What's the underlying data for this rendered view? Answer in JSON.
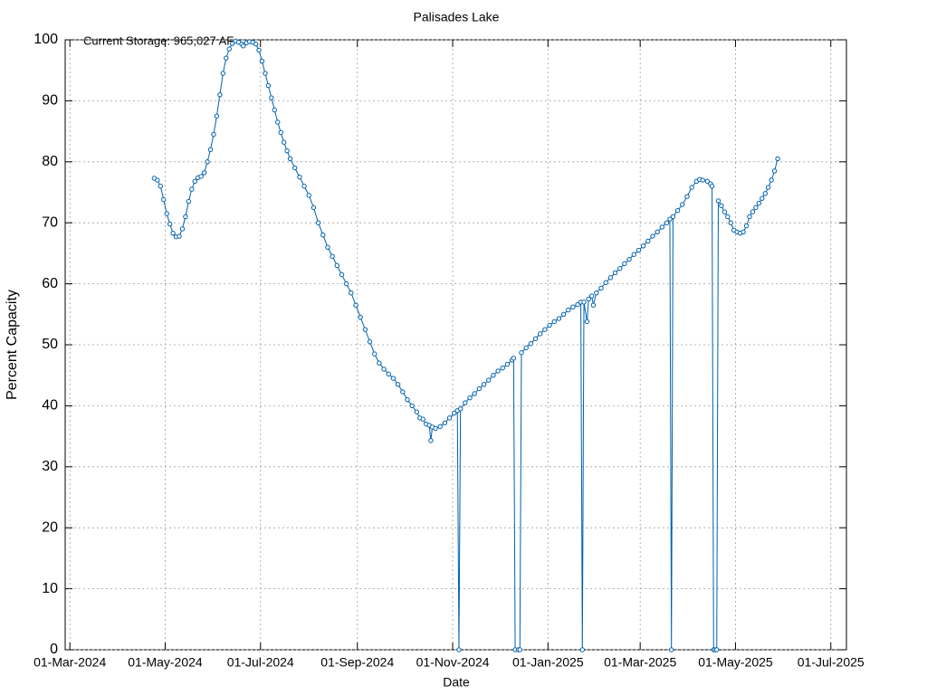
{
  "chart_data": {
    "type": "line",
    "title": "Palisades Lake",
    "x_label": "Date",
    "y_label": "Percent Capacity",
    "grid": true,
    "legend": "top-left",
    "xlim": [
      "2024-02-27",
      "2025-07-11"
    ],
    "xticks": [
      {
        "value": "2024-03-01",
        "label": "01-Mar-2024"
      },
      {
        "value": "2024-05-01",
        "label": "01-May-2024"
      },
      {
        "value": "2024-07-01",
        "label": "01-Jul-2024"
      },
      {
        "value": "2024-09-01",
        "label": "01-Sep-2024"
      },
      {
        "value": "2024-11-01",
        "label": "01-Nov-2024"
      },
      {
        "value": "2025-01-01",
        "label": "01-Jan-2025"
      },
      {
        "value": "2025-03-01",
        "label": "01-Mar-2025"
      },
      {
        "value": "2025-05-01",
        "label": "01-May-2025"
      },
      {
        "value": "2025-07-01",
        "label": "01-Jul-2025"
      }
    ],
    "ylim": [
      0,
      100
    ],
    "yticks": [
      0,
      10,
      20,
      30,
      40,
      50,
      60,
      70,
      80,
      90,
      100
    ],
    "x": [
      "2024-04-24",
      "2024-04-26",
      "2024-04-28",
      "2024-04-30",
      "2024-05-02",
      "2024-05-04",
      "2024-05-06",
      "2024-05-08",
      "2024-05-10",
      "2024-05-12",
      "2024-05-14",
      "2024-05-16",
      "2024-05-18",
      "2024-05-20",
      "2024-05-22",
      "2024-05-24",
      "2024-05-26",
      "2024-05-28",
      "2024-05-30",
      "2024-06-01",
      "2024-06-03",
      "2024-06-05",
      "2024-06-07",
      "2024-06-09",
      "2024-06-11",
      "2024-06-13",
      "2024-06-15",
      "2024-06-17",
      "2024-06-19",
      "2024-06-20",
      "2024-06-22",
      "2024-06-24",
      "2024-06-26",
      "2024-06-28",
      "2024-06-30",
      "2024-07-02",
      "2024-07-04",
      "2024-07-06",
      "2024-07-08",
      "2024-07-10",
      "2024-07-12",
      "2024-07-14",
      "2024-07-16",
      "2024-07-18",
      "2024-07-20",
      "2024-07-23",
      "2024-07-26",
      "2024-07-29",
      "2024-08-01",
      "2024-08-04",
      "2024-08-07",
      "2024-08-10",
      "2024-08-13",
      "2024-08-16",
      "2024-08-19",
      "2024-08-22",
      "2024-08-25",
      "2024-08-28",
      "2024-08-31",
      "2024-09-03",
      "2024-09-06",
      "2024-09-09",
      "2024-09-12",
      "2024-09-15",
      "2024-09-18",
      "2024-09-21",
      "2024-09-24",
      "2024-09-27",
      "2024-09-30",
      "2024-10-03",
      "2024-10-06",
      "2024-10-09",
      "2024-10-11",
      "2024-10-13",
      "2024-10-15",
      "2024-10-17",
      "2024-10-18",
      "2024-10-19",
      "2024-10-21",
      "2024-10-24",
      "2024-10-27",
      "2024-10-30",
      "2024-11-02",
      "2024-11-04",
      "2024-11-05",
      "2024-11-06",
      "2024-11-09",
      "2024-11-12",
      "2024-11-15",
      "2024-11-18",
      "2024-11-21",
      "2024-11-24",
      "2024-11-27",
      "2024-11-30",
      "2024-12-03",
      "2024-12-06",
      "2024-12-09",
      "2024-12-10",
      "2024-12-11",
      "2024-12-13",
      "2024-12-14",
      "2024-12-15",
      "2024-12-18",
      "2024-12-21",
      "2024-12-24",
      "2024-12-27",
      "2024-12-30",
      "2025-01-02",
      "2025-01-05",
      "2025-01-08",
      "2025-01-11",
      "2025-01-14",
      "2025-01-17",
      "2025-01-20",
      "2025-01-22",
      "2025-01-23",
      "2025-01-24",
      "2025-01-26",
      "2025-01-27",
      "2025-01-29",
      "2025-01-30",
      "2025-02-01",
      "2025-02-04",
      "2025-02-07",
      "2025-02-10",
      "2025-02-13",
      "2025-02-16",
      "2025-02-19",
      "2025-02-22",
      "2025-02-25",
      "2025-02-28",
      "2025-03-03",
      "2025-03-06",
      "2025-03-09",
      "2025-03-12",
      "2025-03-15",
      "2025-03-18",
      "2025-03-20",
      "2025-03-21",
      "2025-03-22",
      "2025-03-25",
      "2025-03-28",
      "2025-03-31",
      "2025-04-03",
      "2025-04-06",
      "2025-04-08",
      "2025-04-10",
      "2025-04-13",
      "2025-04-15",
      "2025-04-16",
      "2025-04-17",
      "2025-04-18",
      "2025-04-19",
      "2025-04-20",
      "2025-04-22",
      "2025-04-24",
      "2025-04-26",
      "2025-04-28",
      "2025-04-30",
      "2025-05-02",
      "2025-05-04",
      "2025-05-06",
      "2025-05-08",
      "2025-05-10",
      "2025-05-12",
      "2025-05-14",
      "2025-05-16",
      "2025-05-18",
      "2025-05-20",
      "2025-05-22",
      "2025-05-24",
      "2025-05-26",
      "2025-05-28"
    ],
    "series": [
      {
        "name": "Current Storage: 965,027 AF",
        "color": "#0060ad",
        "values": [
          77.3,
          77.0,
          76.0,
          73.8,
          71.5,
          69.8,
          68.3,
          67.7,
          67.8,
          69.0,
          71.0,
          73.5,
          75.5,
          76.8,
          77.4,
          77.6,
          78.2,
          80.0,
          82.0,
          84.5,
          87.5,
          91.0,
          94.5,
          97.0,
          98.5,
          99.4,
          99.8,
          99.6,
          99.3,
          99.0,
          99.5,
          99.7,
          99.6,
          99.3,
          98.3,
          96.5,
          94.5,
          92.5,
          90.5,
          88.5,
          86.5,
          84.8,
          83.2,
          81.8,
          80.5,
          79.0,
          77.5,
          76.0,
          74.5,
          72.5,
          70.0,
          68.0,
          66.0,
          64.5,
          63.0,
          61.5,
          60.0,
          58.5,
          56.5,
          54.5,
          52.5,
          50.5,
          48.5,
          47.0,
          46.0,
          45.2,
          44.5,
          43.5,
          42.3,
          41.0,
          40.0,
          39.0,
          38.0,
          37.8,
          37.0,
          36.8,
          34.3,
          36.5,
          36.3,
          36.6,
          37.2,
          38.0,
          38.8,
          39.2,
          0,
          39.5,
          40.5,
          41.3,
          42.0,
          42.8,
          43.5,
          44.2,
          45.0,
          45.7,
          46.2,
          46.8,
          47.5,
          47.8,
          0,
          0,
          0,
          48.7,
          49.5,
          50.2,
          51.0,
          51.8,
          52.5,
          53.2,
          53.8,
          54.3,
          55.0,
          55.7,
          56.2,
          56.6,
          57.0,
          0,
          57.0,
          53.8,
          57.5,
          58.0,
          56.5,
          58.5,
          59.3,
          60.2,
          61.0,
          61.8,
          62.5,
          63.3,
          64.0,
          64.8,
          65.5,
          66.2,
          67.0,
          67.8,
          68.5,
          69.3,
          70.0,
          70.6,
          0,
          71.0,
          72.0,
          73.0,
          74.3,
          75.8,
          76.8,
          77.1,
          77.0,
          76.8,
          76.4,
          76.0,
          0,
          0,
          0,
          73.6,
          72.8,
          71.8,
          71.0,
          70.0,
          68.8,
          68.5,
          68.3,
          68.5,
          69.5,
          71.0,
          71.8,
          72.5,
          73.2,
          74.0,
          74.8,
          75.8,
          77.0,
          78.5,
          80.5
        ]
      }
    ]
  }
}
